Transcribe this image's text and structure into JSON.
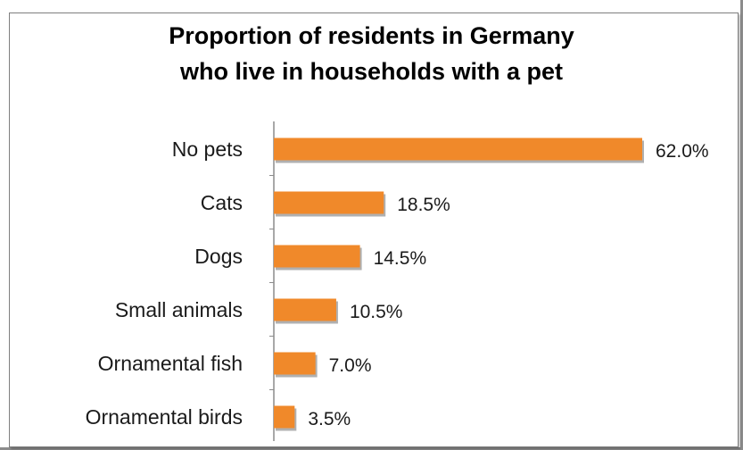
{
  "title_lines": [
    "Proportion of residents in Germany",
    "who live in households with a pet"
  ],
  "colors": {
    "bar": "#F0892A",
    "bar_shadow": "#b0b0b0",
    "axis": "#8c8c8c"
  },
  "chart_data": {
    "type": "bar",
    "orientation": "horizontal",
    "title": "Proportion of residents in Germany who live in households with a pet",
    "xlabel": "",
    "ylabel": "",
    "categories": [
      "No pets",
      "Cats",
      "Dogs",
      "Small animals",
      "Ornamental fish",
      "Ornamental birds"
    ],
    "values": [
      62.0,
      18.5,
      14.5,
      10.5,
      7.0,
      3.5
    ],
    "value_labels": [
      "62.0%",
      "18.5%",
      "14.5%",
      "10.5%",
      "7.0%",
      "3.5%"
    ],
    "xlim": [
      0,
      62
    ],
    "grid": false,
    "legend": "none"
  }
}
